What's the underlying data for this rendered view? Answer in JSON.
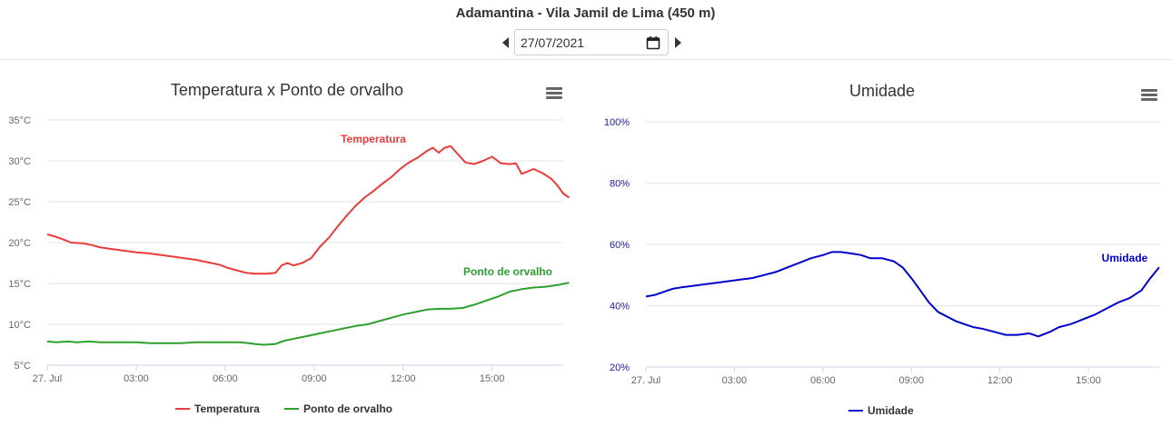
{
  "header": {
    "title": "Adamantina - Vila Jamil de Lima (450 m)",
    "date_value": "27/07/2021"
  },
  "icons": {
    "prev": "caret-left-icon",
    "next": "caret-right-icon",
    "calendar": "calendar-icon",
    "menu": "hamburger-menu-icon"
  },
  "chart_data": [
    {
      "type": "line",
      "title": "Temperatura x Ponto de orvalho",
      "y_ticks": [
        "5°C",
        "10°C",
        "15°C",
        "20°C",
        "25°C",
        "30°C",
        "35°C"
      ],
      "ylim": [
        5,
        35
      ],
      "x_ticks": [
        "27. Jul",
        "03:00",
        "06:00",
        "09:00",
        "12:00",
        "15:00"
      ],
      "x_tick_hours": [
        0,
        3,
        6,
        9,
        12,
        15
      ],
      "xlim_hours": [
        0,
        17.4
      ],
      "grid": true,
      "legend_position": "bottom",
      "series": [
        {
          "name": "Temperatura",
          "color": "#e83c3c",
          "end_label": "Temperatura",
          "points": [
            [
              0,
              21
            ],
            [
              0.3,
              20.7
            ],
            [
              0.6,
              20.3
            ],
            [
              0.8,
              20
            ],
            [
              1.2,
              19.9
            ],
            [
              1.5,
              19.7
            ],
            [
              1.8,
              19.4
            ],
            [
              2.2,
              19.2
            ],
            [
              2.6,
              19
            ],
            [
              3,
              18.8
            ],
            [
              3.4,
              18.7
            ],
            [
              3.8,
              18.5
            ],
            [
              4.2,
              18.3
            ],
            [
              4.6,
              18.1
            ],
            [
              5,
              17.9
            ],
            [
              5.4,
              17.6
            ],
            [
              5.8,
              17.3
            ],
            [
              6.1,
              16.9
            ],
            [
              6.4,
              16.6
            ],
            [
              6.7,
              16.3
            ],
            [
              7,
              16.2
            ],
            [
              7.4,
              16.2
            ],
            [
              7.7,
              16.3
            ],
            [
              7.9,
              17.2
            ],
            [
              8.1,
              17.5
            ],
            [
              8.3,
              17.2
            ],
            [
              8.6,
              17.5
            ],
            [
              8.9,
              18.1
            ],
            [
              9.2,
              19.5
            ],
            [
              9.5,
              20.6
            ],
            [
              9.8,
              22
            ],
            [
              10.1,
              23.3
            ],
            [
              10.4,
              24.5
            ],
            [
              10.7,
              25.5
            ],
            [
              11,
              26.3
            ],
            [
              11.3,
              27.2
            ],
            [
              11.6,
              28
            ],
            [
              11.9,
              29
            ],
            [
              12.2,
              29.8
            ],
            [
              12.5,
              30.4
            ],
            [
              12.8,
              31.2
            ],
            [
              13,
              31.6
            ],
            [
              13.2,
              31
            ],
            [
              13.4,
              31.6
            ],
            [
              13.6,
              31.8
            ],
            [
              13.8,
              31
            ],
            [
              14.1,
              29.8
            ],
            [
              14.4,
              29.6
            ],
            [
              14.7,
              30
            ],
            [
              15,
              30.5
            ],
            [
              15.3,
              29.7
            ],
            [
              15.6,
              29.6
            ],
            [
              15.8,
              29.7
            ],
            [
              16,
              28.4
            ],
            [
              16.2,
              28.7
            ],
            [
              16.4,
              29
            ],
            [
              16.7,
              28.5
            ],
            [
              17,
              27.8
            ],
            [
              17.2,
              27
            ],
            [
              17.4,
              26
            ],
            [
              17.6,
              25.5
            ]
          ]
        },
        {
          "name": "Ponto de orvalho",
          "color": "#2ea02e",
          "end_label": "Ponto de orvalho",
          "points": [
            [
              0,
              7.9
            ],
            [
              0.3,
              7.8
            ],
            [
              0.7,
              7.9
            ],
            [
              1,
              7.8
            ],
            [
              1.4,
              7.9
            ],
            [
              1.8,
              7.8
            ],
            [
              2.2,
              7.8
            ],
            [
              2.6,
              7.8
            ],
            [
              3,
              7.8
            ],
            [
              3.5,
              7.7
            ],
            [
              4,
              7.7
            ],
            [
              4.5,
              7.7
            ],
            [
              5,
              7.8
            ],
            [
              5.5,
              7.8
            ],
            [
              6,
              7.8
            ],
            [
              6.5,
              7.8
            ],
            [
              6.8,
              7.7
            ],
            [
              7,
              7.6
            ],
            [
              7.3,
              7.5
            ],
            [
              7.7,
              7.6
            ],
            [
              8,
              8
            ],
            [
              8.4,
              8.3
            ],
            [
              8.8,
              8.6
            ],
            [
              9.2,
              8.9
            ],
            [
              9.6,
              9.2
            ],
            [
              10,
              9.5
            ],
            [
              10.4,
              9.8
            ],
            [
              10.8,
              10
            ],
            [
              11.2,
              10.4
            ],
            [
              11.6,
              10.8
            ],
            [
              12,
              11.2
            ],
            [
              12.4,
              11.5
            ],
            [
              12.8,
              11.8
            ],
            [
              13.2,
              11.9
            ],
            [
              13.6,
              11.9
            ],
            [
              14,
              12
            ],
            [
              14.4,
              12.4
            ],
            [
              14.8,
              12.9
            ],
            [
              15.2,
              13.4
            ],
            [
              15.6,
              14
            ],
            [
              16,
              14.3
            ],
            [
              16.4,
              14.5
            ],
            [
              16.8,
              14.6
            ],
            [
              17.2,
              14.8
            ],
            [
              17.6,
              15.1
            ]
          ]
        }
      ],
      "legend": [
        {
          "label": "Temperatura",
          "color": "#e83c3c"
        },
        {
          "label": "Ponto de orvalho",
          "color": "#2ea02e"
        }
      ]
    },
    {
      "type": "line",
      "title": "Umidade",
      "y_ticks": [
        "20%",
        "40%",
        "60%",
        "80%",
        "100%"
      ],
      "ylim": [
        20,
        100
      ],
      "x_ticks": [
        "27. Jul",
        "03:00",
        "06:00",
        "09:00",
        "12:00",
        "15:00"
      ],
      "x_tick_hours": [
        0,
        3,
        6,
        9,
        12,
        15
      ],
      "xlim_hours": [
        0,
        17.4
      ],
      "grid": true,
      "legend_position": "bottom",
      "series": [
        {
          "name": "Umidade",
          "color": "#0000cc",
          "end_label": "Umidade",
          "points": [
            [
              0,
              43
            ],
            [
              0.3,
              43.5
            ],
            [
              0.6,
              44.5
            ],
            [
              0.9,
              45.5
            ],
            [
              1.2,
              46
            ],
            [
              1.6,
              46.5
            ],
            [
              2,
              47
            ],
            [
              2.4,
              47.5
            ],
            [
              2.8,
              48
            ],
            [
              3.2,
              48.5
            ],
            [
              3.6,
              49
            ],
            [
              4,
              50
            ],
            [
              4.4,
              51
            ],
            [
              4.8,
              52.5
            ],
            [
              5.2,
              54
            ],
            [
              5.6,
              55.5
            ],
            [
              6,
              56.5
            ],
            [
              6.3,
              57.5
            ],
            [
              6.6,
              57.5
            ],
            [
              7,
              57
            ],
            [
              7.3,
              56.5
            ],
            [
              7.6,
              55.5
            ],
            [
              8,
              55.5
            ],
            [
              8.4,
              54.5
            ],
            [
              8.7,
              52.5
            ],
            [
              9,
              49
            ],
            [
              9.3,
              45
            ],
            [
              9.6,
              41
            ],
            [
              9.9,
              38
            ],
            [
              10.2,
              36.5
            ],
            [
              10.5,
              35
            ],
            [
              10.8,
              34
            ],
            [
              11.1,
              33
            ],
            [
              11.4,
              32.5
            ],
            [
              11.8,
              31.5
            ],
            [
              12.2,
              30.5
            ],
            [
              12.6,
              30.5
            ],
            [
              13,
              31
            ],
            [
              13.3,
              30
            ],
            [
              13.7,
              31.5
            ],
            [
              14,
              33
            ],
            [
              14.4,
              34
            ],
            [
              14.8,
              35.5
            ],
            [
              15.2,
              37
            ],
            [
              15.6,
              39
            ],
            [
              16,
              41
            ],
            [
              16.4,
              42.5
            ],
            [
              16.8,
              45
            ],
            [
              17.1,
              49
            ],
            [
              17.4,
              52.5
            ]
          ]
        }
      ],
      "legend": [
        {
          "label": "Umidade",
          "color": "#0000cc"
        }
      ]
    }
  ]
}
